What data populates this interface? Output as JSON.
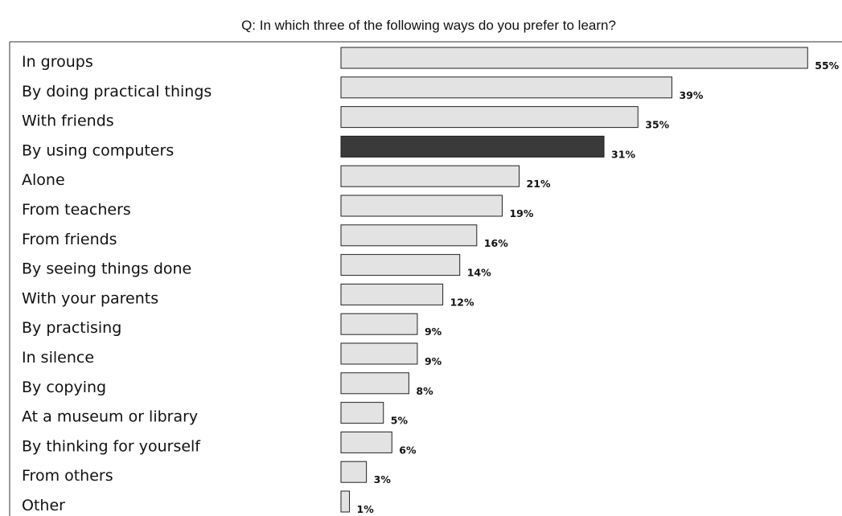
{
  "chart_data": {
    "type": "bar",
    "orientation": "horizontal",
    "title": "Q: In which three of the following ways do you prefer to learn?",
    "categories": [
      "In groups",
      "By doing practical things",
      "With friends",
      "By using computers",
      "Alone",
      "From teachers",
      "From friends",
      "By seeing things done",
      "With your parents",
      "By practising",
      "In silence",
      "By copying",
      "At a museum or library",
      "By thinking for yourself",
      "From others",
      "Other"
    ],
    "values": [
      55,
      39,
      35,
      31,
      21,
      19,
      16,
      14,
      12,
      9,
      9,
      8,
      5,
      6,
      3,
      1
    ],
    "value_labels": [
      "55%",
      "39%",
      "35%",
      "31%",
      "21%",
      "19%",
      "16%",
      "14%",
      "12%",
      "9%",
      "9%",
      "8%",
      "5%",
      "6%",
      "3%",
      "1%"
    ],
    "unit": "%",
    "xlim": [
      0,
      55
    ],
    "highlight_index": 3,
    "colors": {
      "bar": "#e3e3e3",
      "bar_highlight": "#3a3a3a",
      "bar_stroke": "#222222"
    },
    "grid": false,
    "legend": "none"
  }
}
